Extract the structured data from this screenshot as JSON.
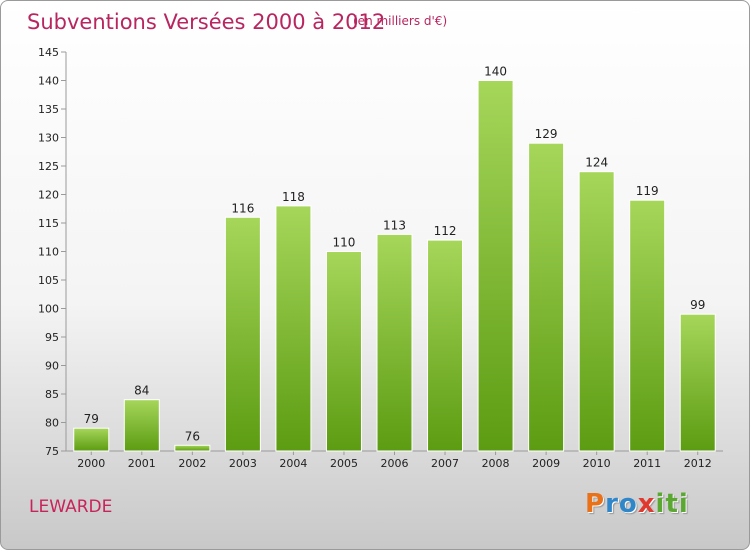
{
  "header": {
    "title": "Subventions Versées 2000 à 2012",
    "subtitle": "(en milliers d'€)"
  },
  "footer": {
    "commune": "LEWARDE",
    "logo_letters": [
      {
        "ch": "P",
        "color": "#e8711a"
      },
      {
        "ch": "r",
        "color": "#2f86c8"
      },
      {
        "ch": "o",
        "color": "#2f86c8"
      },
      {
        "ch": "x",
        "color": "#e03a2f"
      },
      {
        "ch": "i",
        "color": "#5aa832"
      },
      {
        "ch": "t",
        "color": "#5aa832"
      },
      {
        "ch": "i",
        "color": "#5aa832"
      }
    ]
  },
  "chart_data": {
    "type": "bar",
    "title": "Subventions Versées 2000 à 2012",
    "subtitle": "(en milliers d'€)",
    "categories": [
      "2000",
      "2001",
      "2002",
      "2003",
      "2004",
      "2005",
      "2006",
      "2007",
      "2008",
      "2009",
      "2010",
      "2011",
      "2012"
    ],
    "values": [
      79,
      84,
      76,
      116,
      118,
      110,
      113,
      112,
      140,
      129,
      124,
      119,
      99
    ],
    "ylim": [
      75,
      145
    ],
    "yticks": [
      75,
      80,
      85,
      90,
      95,
      100,
      105,
      110,
      115,
      120,
      125,
      130,
      135,
      140,
      145
    ],
    "grid": false,
    "bar_color": "#7fba2e",
    "xlabel": "",
    "ylabel": ""
  }
}
